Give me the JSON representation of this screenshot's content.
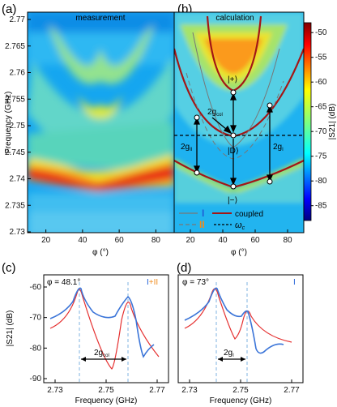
{
  "figure": {
    "panels": [
      {
        "id": "a",
        "label": "(a)",
        "title": "measurement"
      },
      {
        "id": "b",
        "label": "(b)",
        "title": "calculation"
      },
      {
        "id": "c",
        "label": "(c)"
      },
      {
        "id": "d",
        "label": "(d)"
      }
    ],
    "colorbar": {
      "label": "|S21| (dB)",
      "ticks": [
        "-50",
        "-55",
        "-60",
        "-65",
        "-70",
        "-75",
        "-80",
        "-85"
      ],
      "range": [
        -88,
        -48
      ],
      "colormap": "jet"
    },
    "top_axes": {
      "ylabel": "Frequency (GHz)",
      "xlabel": "φ (°)",
      "y_ticks": [
        "2.77",
        "2.765",
        "2.76",
        "2.755",
        "2.75",
        "2.745",
        "2.74",
        "2.735",
        "2.73"
      ],
      "x_ticks": [
        "20",
        "40",
        "60",
        "80"
      ]
    },
    "annotations_b": {
      "state_plus": "|+⟩",
      "state_dark": "|D⟩",
      "state_minus": "|−⟩",
      "coupling_col": "2g",
      "coupling_col_sub": "col",
      "coupling_II": "2g",
      "coupling_II_sub": "II",
      "coupling_I": "2g",
      "coupling_I_sub": "I"
    },
    "legend_b": {
      "mode_I": "I",
      "mode_II": "II",
      "coupled": "coupled",
      "omega_c": "ω",
      "omega_c_sub": "c"
    },
    "bottom_axes": {
      "ylabel": "|S21| (dB)",
      "xlabel": "Frequency (GHz)",
      "y_ticks": [
        "-60",
        "-70",
        "-80",
        "-90"
      ],
      "x_ticks": [
        "2.73",
        "2.75",
        "2.77"
      ]
    },
    "panel_c": {
      "phi": "φ = 48.1°",
      "modes_I": "I",
      "modes_plus": "+",
      "modes_II": "II",
      "gap": "2g",
      "gap_sub": "col"
    },
    "panel_d": {
      "phi": "φ = 73°",
      "modes_I": "I",
      "gap": "2g",
      "gap_sub": "I"
    },
    "colors": {
      "measured_curve": "#3a74d8",
      "fit_curve": "#e53030",
      "coupled_line": "#a31616",
      "mode_I": "#1f5fd6",
      "mode_II": "#f08c1e",
      "dashed_marker": "#7fb3e0"
    }
  }
}
